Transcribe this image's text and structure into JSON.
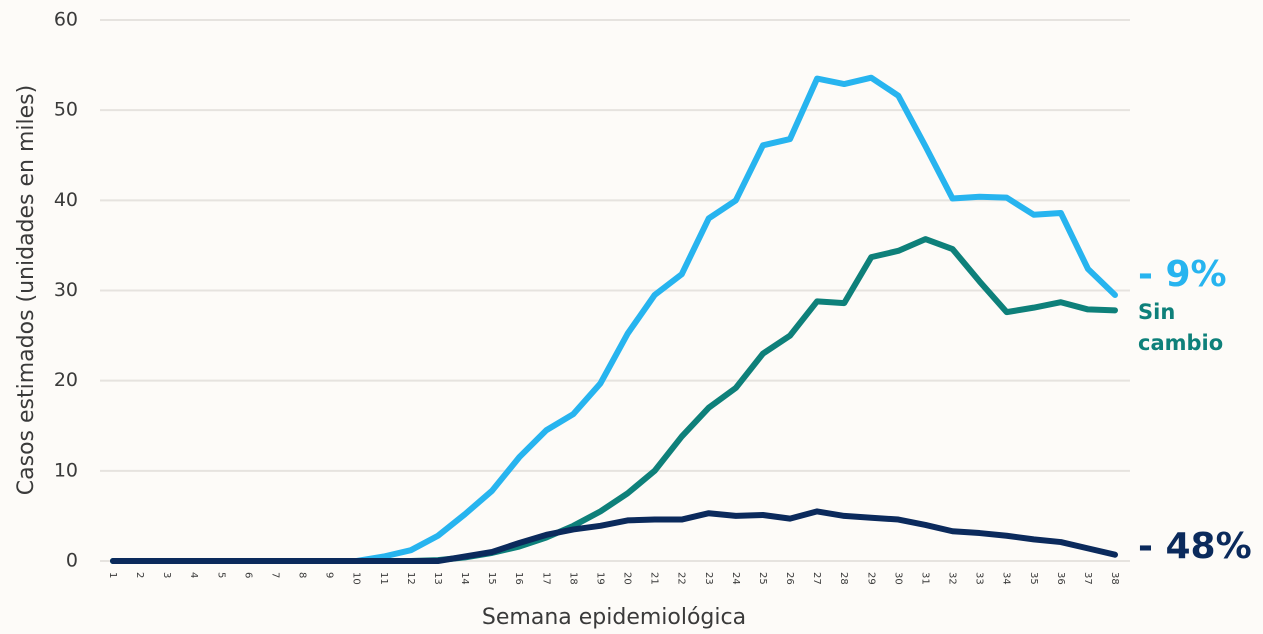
{
  "chart_data": {
    "type": "line",
    "y_label": "Casos estimados (unidades en miles)",
    "x_label": "Semana epidemiológica",
    "categories": [
      "1",
      "2",
      "3",
      "4",
      "5",
      "6",
      "7",
      "8",
      "9",
      "10",
      "11",
      "12",
      "13",
      "14",
      "15",
      "16",
      "17",
      "18",
      "19",
      "20",
      "21",
      "22",
      "23",
      "24",
      "25",
      "26",
      "27",
      "28",
      "29",
      "30",
      "31",
      "32",
      "33",
      "34",
      "35",
      "36",
      "37",
      "38"
    ],
    "series": [
      {
        "color": "#27b4ef",
        "values": [
          0,
          0,
          0,
          0,
          0,
          0,
          0,
          0,
          0,
          0,
          0.5,
          1.2,
          2.8,
          5.2,
          7.8,
          11.5,
          14.5,
          16.3,
          19.7,
          25.2,
          29.5,
          31.8,
          38,
          40,
          46.1,
          46.8,
          53.5,
          52.9,
          53.6,
          51.6,
          46,
          40.2,
          40.4,
          40.3,
          38.4,
          38.6,
          32.4,
          29.5
        ]
      },
      {
        "color": "#0e807a",
        "values": [
          0,
          0,
          0,
          0,
          0,
          0,
          0,
          0,
          0,
          0,
          0,
          0,
          0.1,
          0.4,
          0.9,
          1.6,
          2.6,
          3.9,
          5.5,
          7.5,
          10,
          13.8,
          17,
          19.2,
          23,
          25,
          28.8,
          28.6,
          33.7,
          34.4,
          35.7,
          34.6,
          31,
          27.6,
          28.1,
          28.7,
          27.9,
          27.8
        ]
      },
      {
        "color": "#0b2a5c",
        "values": [
          0,
          0,
          0,
          0,
          0,
          0,
          0,
          0,
          0,
          0,
          0,
          0,
          0,
          0.5,
          1,
          2,
          2.9,
          3.5,
          3.9,
          4.5,
          4.6,
          4.6,
          5.3,
          5,
          5.1,
          4.7,
          5.5,
          5,
          4.8,
          4.6,
          4,
          3.3,
          3.1,
          2.8,
          2.4,
          2.1,
          1.4,
          0.7
        ]
      }
    ],
    "ylim": [
      0,
      60
    ],
    "yticks": [
      0,
      10,
      20,
      30,
      40,
      50,
      60
    ],
    "grid": true,
    "annotations": [
      {
        "lines": [
          "- 9%"
        ],
        "color": "#27b4ef"
      },
      {
        "lines": [
          "Sin",
          "cambio"
        ],
        "color": "#0e807a"
      },
      {
        "lines": [
          "- 48%"
        ],
        "color": "#0b2a5c"
      }
    ]
  }
}
